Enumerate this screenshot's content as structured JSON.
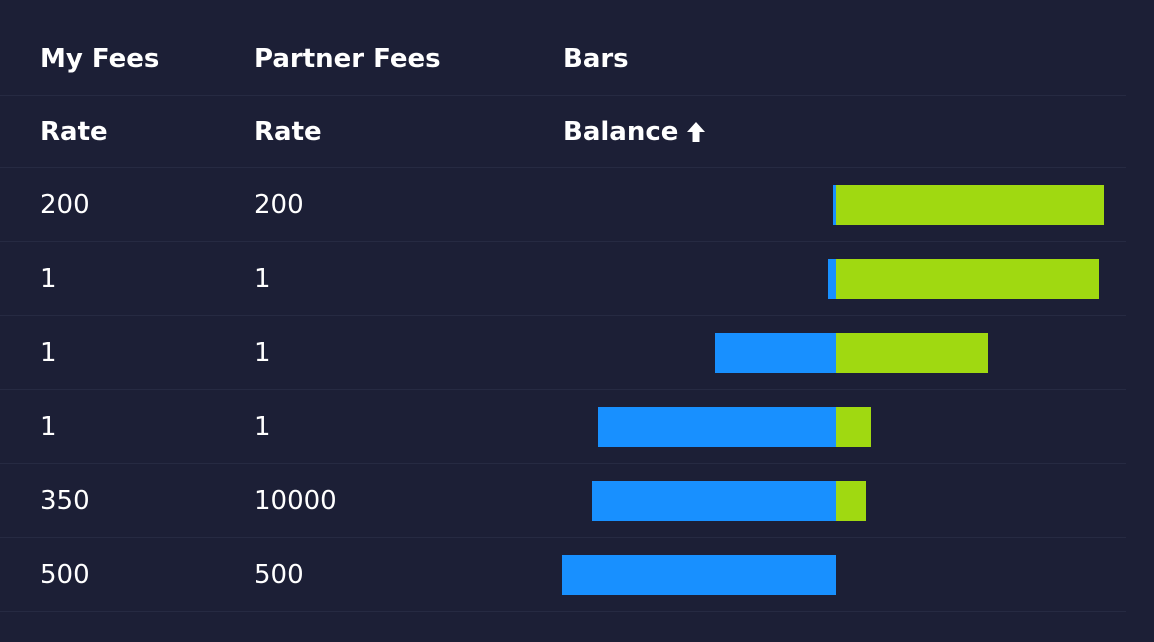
{
  "header": {
    "group_labels": [
      "My Fees",
      "Partner Fees",
      "Bars"
    ],
    "sub_labels": [
      "Rate",
      "Rate",
      "Balance"
    ],
    "sort_icon": "arrow-up-icon"
  },
  "colors": {
    "background": "#1c1f36",
    "row_divider": "#262a42",
    "negative_bar": "#1890ff",
    "positive_bar": "#a0d911"
  },
  "rows": [
    {
      "my_rate": "200",
      "partner_rate": "200",
      "balance_neg": 0.01,
      "balance_pos": 0.99
    },
    {
      "my_rate": "1",
      "partner_rate": "1",
      "balance_neg": 0.03,
      "balance_pos": 0.97
    },
    {
      "my_rate": "1",
      "partner_rate": "1",
      "balance_neg": 0.44,
      "balance_pos": 0.56
    },
    {
      "my_rate": "1",
      "partner_rate": "1",
      "balance_neg": 0.87,
      "balance_pos": 0.13
    },
    {
      "my_rate": "350",
      "partner_rate": "10000",
      "balance_neg": 0.89,
      "balance_pos": 0.11
    },
    {
      "my_rate": "500",
      "partner_rate": "500",
      "balance_neg": 1.0,
      "balance_pos": 0.0
    }
  ]
}
